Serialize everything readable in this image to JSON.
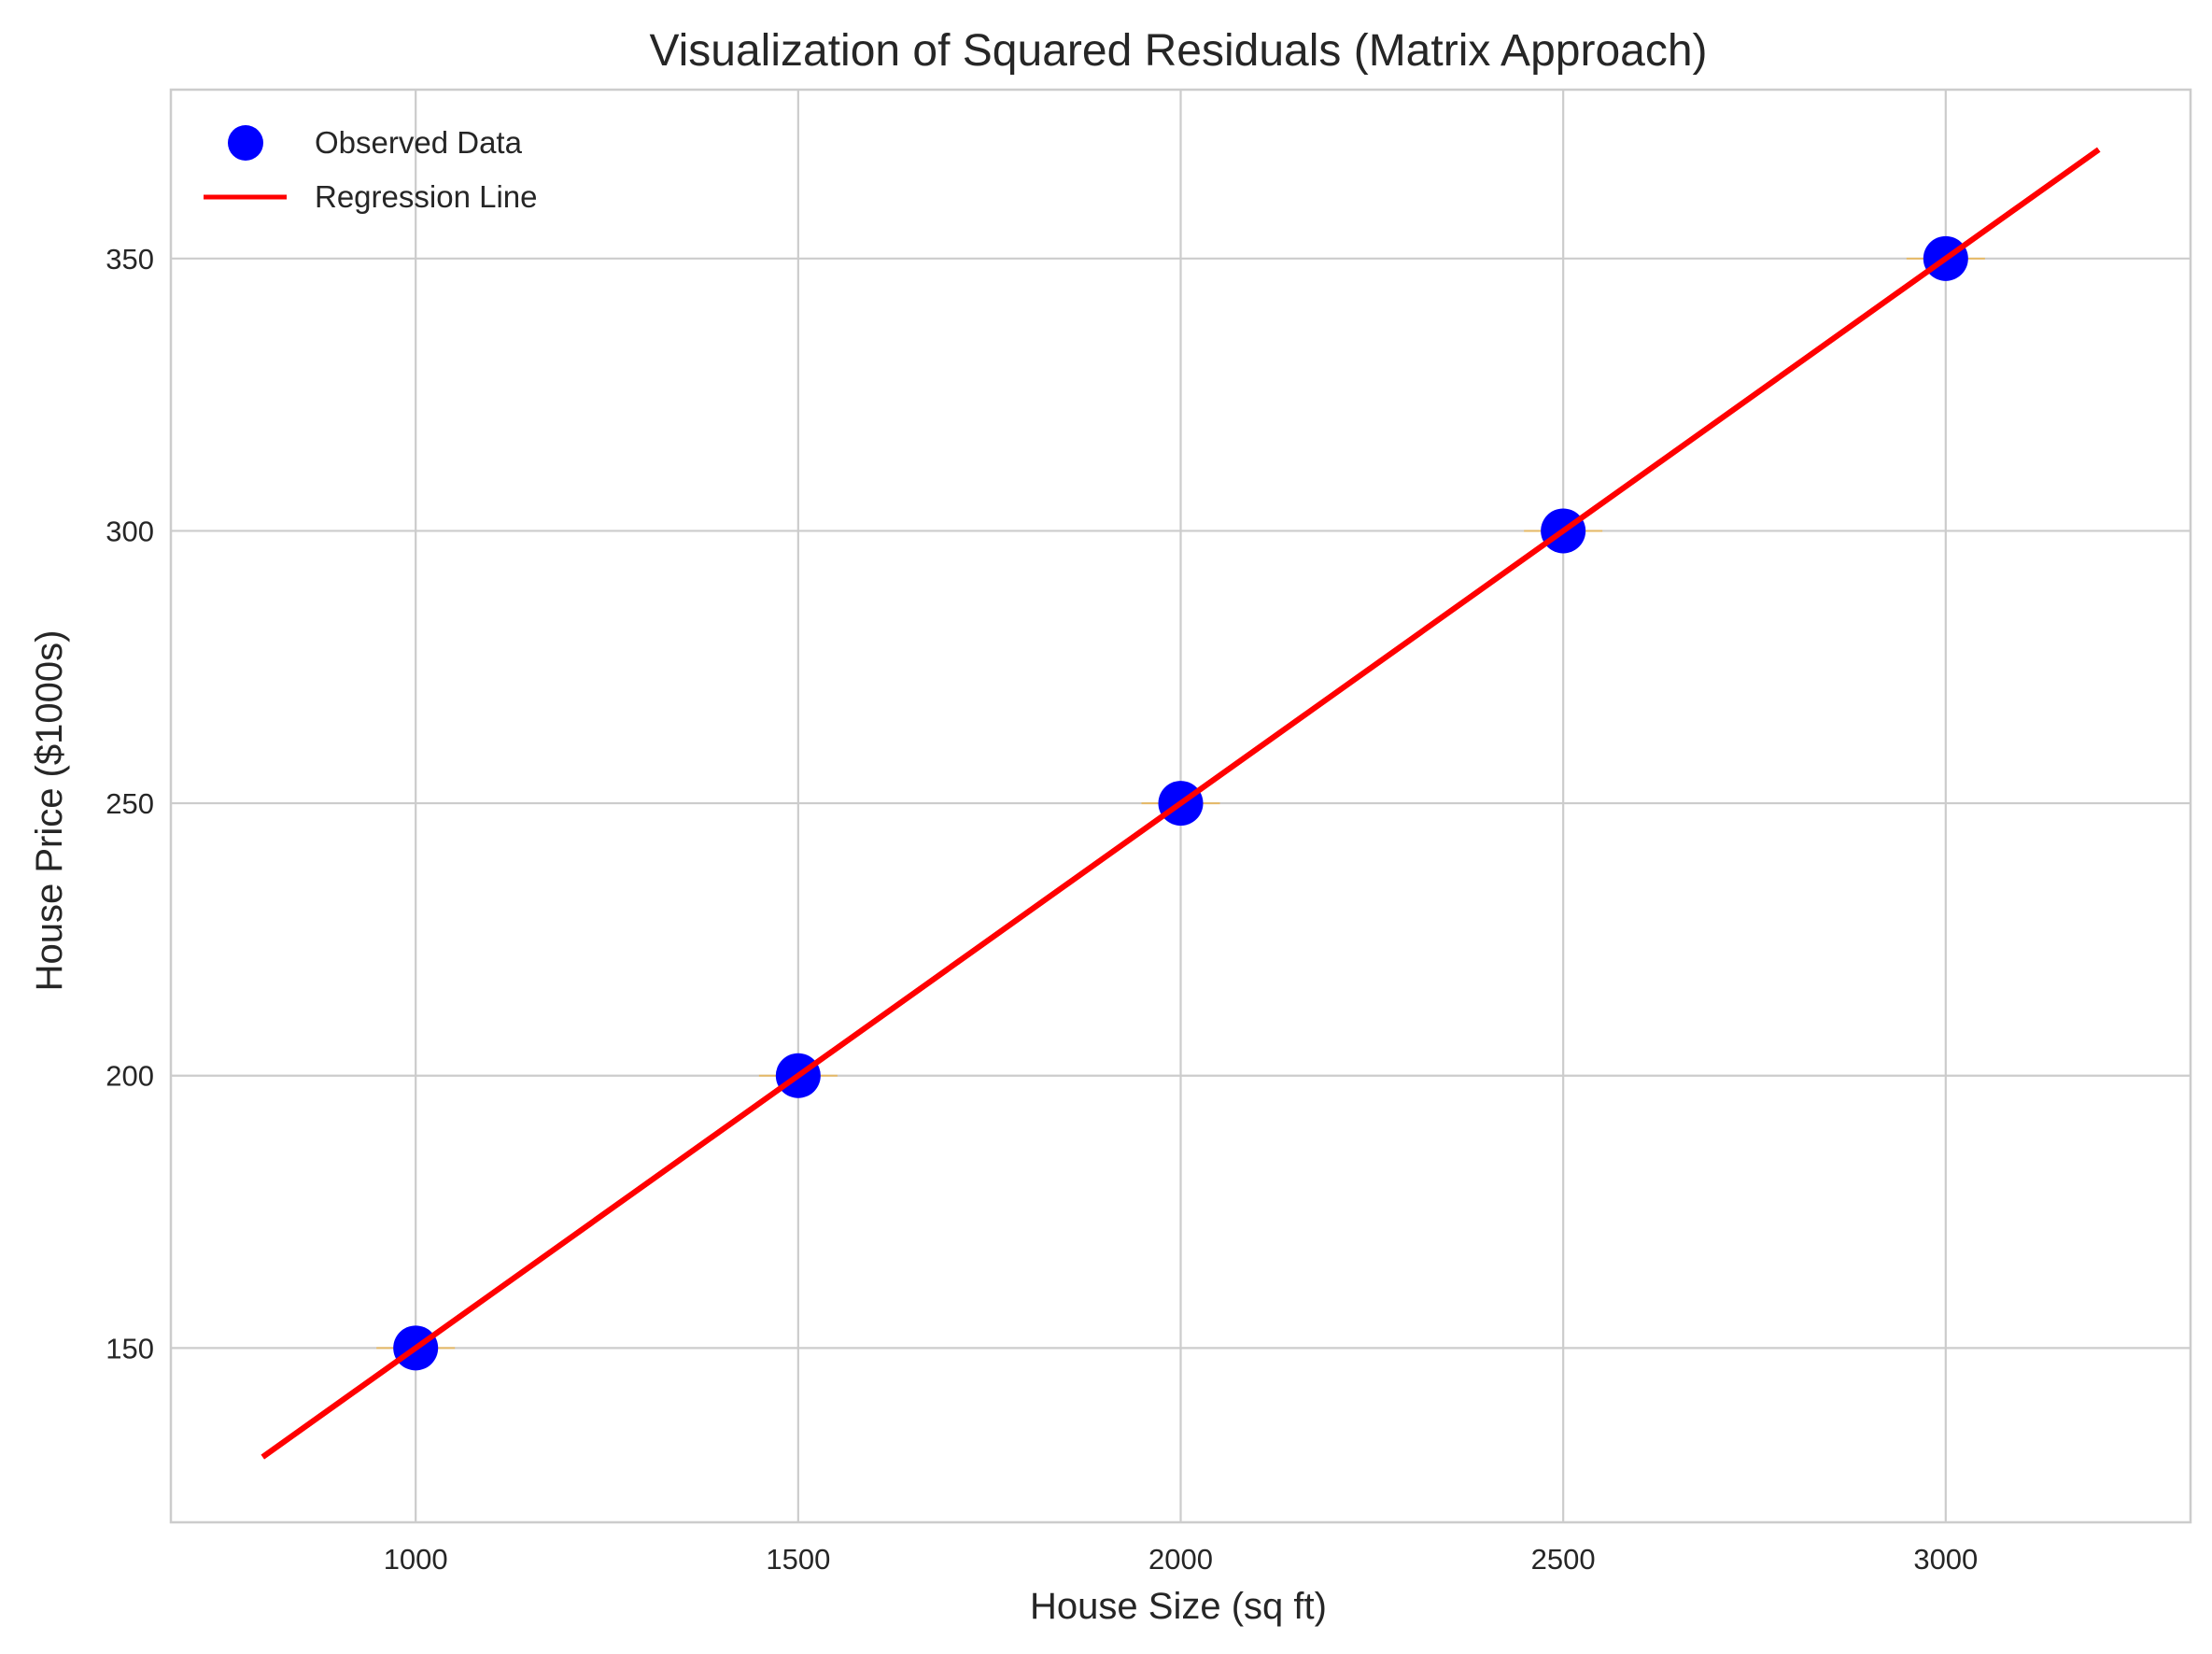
{
  "chart_data": {
    "type": "scatter",
    "title": "Visualization of Squared Residuals (Matrix Approach)",
    "xlabel": "House Size (sq ft)",
    "ylabel": "House Price ($1000s)",
    "xlim": [
      680,
      3320
    ],
    "ylim": [
      118,
      381
    ],
    "xticks": [
      1000,
      1500,
      2000,
      2500,
      3000
    ],
    "yticks": [
      150,
      200,
      250,
      300,
      350
    ],
    "grid": true,
    "legend_position": "top-left",
    "series": [
      {
        "name": "Observed Data",
        "kind": "scatter",
        "color": "#0000ff",
        "x": [
          1000,
          1500,
          2000,
          2500,
          3000
        ],
        "y": [
          150,
          200,
          250,
          300,
          350
        ]
      },
      {
        "name": "Regression Line",
        "kind": "line",
        "color": "#ff0000",
        "x": [
          800,
          3200
        ],
        "y": [
          130,
          370
        ]
      }
    ],
    "residual_squares": {
      "color": "#ffa500",
      "x": [
        1000,
        1500,
        2000,
        2500,
        3000
      ],
      "observed": [
        150,
        200,
        250,
        300,
        350
      ],
      "predicted": [
        150,
        200,
        250,
        300,
        350
      ]
    }
  },
  "colors": {
    "grid": "#cccccc",
    "spine": "#cccccc",
    "text": "#262626",
    "background": "#ffffff"
  }
}
